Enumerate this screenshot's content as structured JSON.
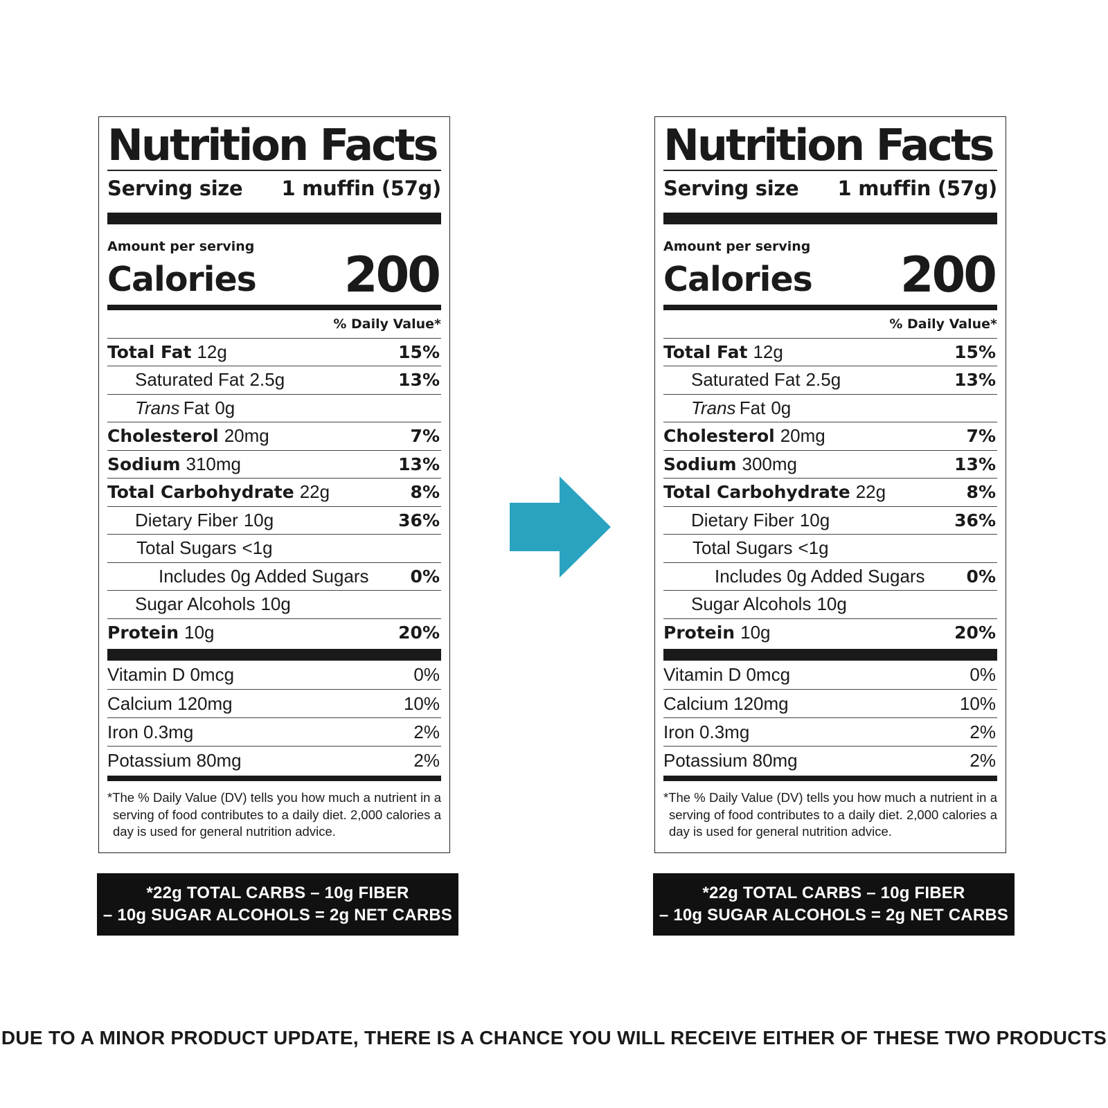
{
  "labels": [
    {
      "title": "Nutrition Facts",
      "serving_label": "Serving size",
      "serving_value": "1 muffin (57g)",
      "amount_per_serving": "Amount per serving",
      "calories_label": "Calories",
      "calories_value": "200",
      "daily_value_header": "% Daily Value*",
      "nutrients": [
        {
          "name": "Total Fat",
          "amount": "12g",
          "dv": "15%"
        },
        {
          "name": "Saturated Fat",
          "amount": "2.5g",
          "dv": "13%"
        },
        {
          "name": "Trans",
          "suffix": "Fat",
          "amount": "0g",
          "dv": ""
        },
        {
          "name": "Cholesterol",
          "amount": "20mg",
          "dv": "7%"
        },
        {
          "name": "Sodium",
          "amount": "310mg",
          "dv": "13%"
        },
        {
          "name": "Total Carbohydrate",
          "amount": "22g",
          "dv": "8%"
        },
        {
          "name": "Dietary Fiber",
          "amount": "10g",
          "dv": "36%"
        },
        {
          "name": "Total Sugars",
          "amount": "<1g",
          "dv": ""
        },
        {
          "name": "Includes 0g Added Sugars",
          "amount": "",
          "dv": "0%"
        },
        {
          "name": "Sugar Alcohols",
          "amount": "10g",
          "dv": ""
        },
        {
          "name": "Protein",
          "amount": "10g",
          "dv": "20%"
        }
      ],
      "vitamins": [
        {
          "name": "Vitamin D 0mcg",
          "dv": "0%"
        },
        {
          "name": "Calcium 120mg",
          "dv": "10%"
        },
        {
          "name": "Iron 0.3mg",
          "dv": "2%"
        },
        {
          "name": "Potassium 80mg",
          "dv": "2%"
        }
      ],
      "footnote": "*The % Daily Value (DV) tells you how much a nutrient in a serving of food contributes to a daily diet. 2,000 calories a day is used for general nutrition advice.",
      "net_carbs_line1": "*22g TOTAL CARBS – 10g FIBER",
      "net_carbs_line2": "– 10g SUGAR ALCOHOLS = 2g NET CARBS"
    },
    {
      "title": "Nutrition Facts",
      "serving_label": "Serving size",
      "serving_value": "1 muffin (57g)",
      "amount_per_serving": "Amount per serving",
      "calories_label": "Calories",
      "calories_value": "200",
      "daily_value_header": "% Daily Value*",
      "nutrients": [
        {
          "name": "Total Fat",
          "amount": "12g",
          "dv": "15%"
        },
        {
          "name": "Saturated Fat",
          "amount": "2.5g",
          "dv": "13%"
        },
        {
          "name": "Trans",
          "suffix": "Fat",
          "amount": "0g",
          "dv": ""
        },
        {
          "name": "Cholesterol",
          "amount": "20mg",
          "dv": "7%"
        },
        {
          "name": "Sodium",
          "amount": "300mg",
          "dv": "13%"
        },
        {
          "name": "Total Carbohydrate",
          "amount": "22g",
          "dv": "8%"
        },
        {
          "name": "Dietary Fiber",
          "amount": "10g",
          "dv": "36%"
        },
        {
          "name": "Total Sugars",
          "amount": "<1g",
          "dv": ""
        },
        {
          "name": "Includes 0g Added Sugars",
          "amount": "",
          "dv": "0%"
        },
        {
          "name": "Sugar Alcohols",
          "amount": "10g",
          "dv": ""
        },
        {
          "name": "Protein",
          "amount": "10g",
          "dv": "20%"
        }
      ],
      "vitamins": [
        {
          "name": "Vitamin D 0mcg",
          "dv": "0%"
        },
        {
          "name": "Calcium 120mg",
          "dv": "10%"
        },
        {
          "name": "Iron 0.3mg",
          "dv": "2%"
        },
        {
          "name": "Potassium 80mg",
          "dv": "2%"
        }
      ],
      "footnote": "*The % Daily Value (DV) tells you how much a nutrient in a serving of food contributes to a daily diet. 2,000 calories a day is used for general nutrition advice.",
      "net_carbs_line1": "*22g TOTAL CARBS – 10g FIBER",
      "net_carbs_line2": "– 10g SUGAR ALCOHOLS = 2g NET CARBS"
    }
  ],
  "arrow_color": "#2aa3c0",
  "arrow_icon": "right-arrow-icon",
  "notice": "DUE TO A MINOR PRODUCT UPDATE, THERE IS A CHANCE YOU WILL RECEIVE EITHER OF THESE TWO PRODUCTS"
}
